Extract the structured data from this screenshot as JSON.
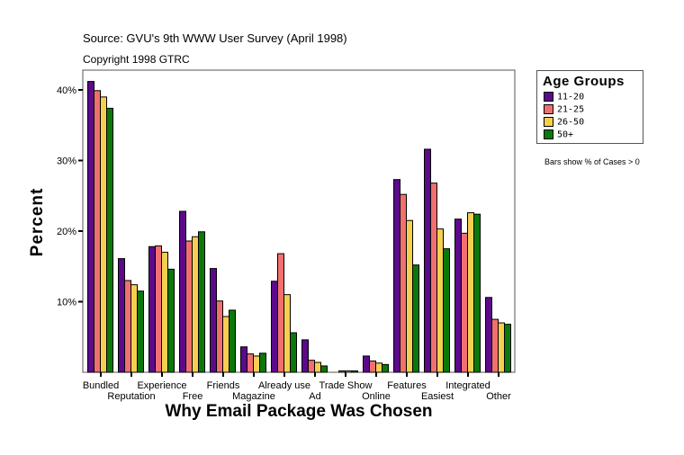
{
  "header": {
    "source": "Source: GVU's 9th WWW User Survey (April 1998)",
    "copyright": "Copyright 1998 GTRC"
  },
  "note": "Bars show % of Cases > 0",
  "chart_data": {
    "type": "bar",
    "xlabel": "Why Email Package Was Chosen",
    "ylabel": "Percent",
    "ylim": [
      0,
      42.5
    ],
    "yticks": [
      "10%",
      "20%",
      "30%",
      "40%"
    ],
    "ytick_values": [
      10,
      20,
      30,
      40
    ],
    "legend_title": "Age Groups",
    "legend_position": "right",
    "categories": [
      "Bundled",
      "Reputation",
      "Experience",
      "Free",
      "Friends",
      "Magazine",
      "Already use",
      "Ad",
      "Trade Show",
      "Online",
      "Features",
      "Easiest",
      "Integrated",
      "Other"
    ],
    "series": [
      {
        "name": "11-20",
        "color": "#5c0a8a",
        "values": [
          41.2,
          16.1,
          17.8,
          22.8,
          14.7,
          3.6,
          12.9,
          4.6,
          0,
          2.3,
          27.3,
          31.6,
          21.7,
          10.6
        ]
      },
      {
        "name": "21-25",
        "color": "#f07070",
        "values": [
          39.9,
          13.0,
          17.9,
          18.6,
          10.1,
          2.6,
          16.8,
          1.7,
          0.2,
          1.6,
          25.2,
          26.8,
          19.7,
          7.5
        ]
      },
      {
        "name": "26-50",
        "color": "#f5d050",
        "values": [
          39.0,
          12.4,
          17.0,
          19.2,
          7.9,
          2.3,
          11.0,
          1.4,
          0.2,
          1.3,
          21.5,
          20.3,
          22.6,
          7.0
        ]
      },
      {
        "name": "50+",
        "color": "#0a780a",
        "values": [
          37.4,
          11.5,
          14.6,
          19.9,
          8.8,
          2.7,
          5.6,
          0.9,
          0.2,
          1.1,
          15.2,
          17.5,
          22.4,
          6.8
        ]
      }
    ]
  }
}
